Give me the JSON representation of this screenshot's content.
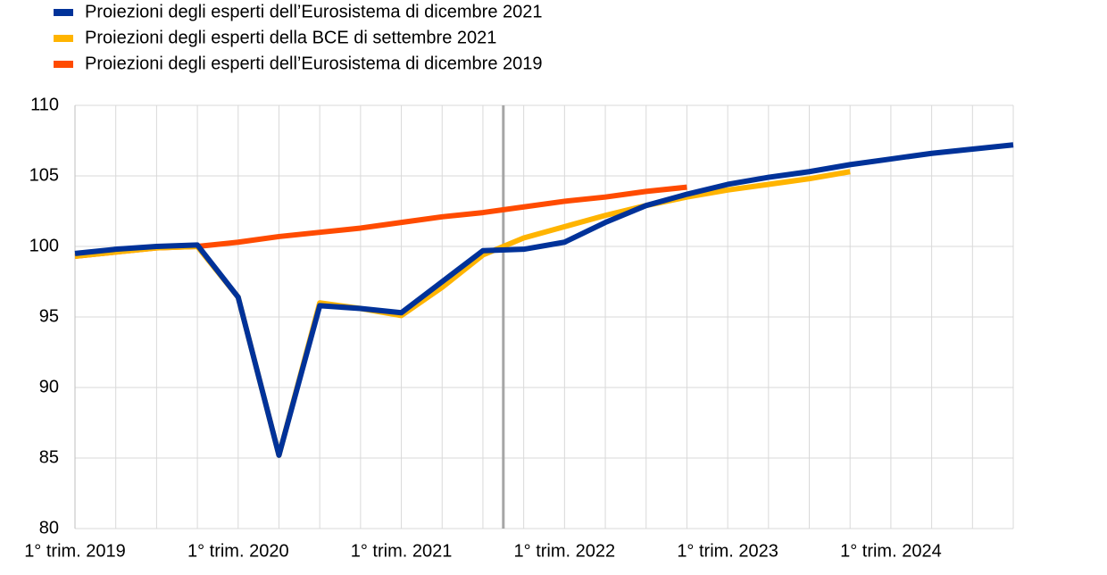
{
  "chart_data": {
    "type": "line",
    "categories": [
      "1° trim. 2019",
      null,
      null,
      null,
      "1° trim. 2020",
      null,
      null,
      null,
      "1° trim. 2021",
      null,
      null,
      null,
      "1° trim. 2022",
      null,
      null,
      null,
      "1° trim. 2023",
      null,
      null,
      null,
      "1° trim. 2024",
      null,
      null,
      null
    ],
    "series": [
      {
        "name": "Proiezioni degli esperti dell’Eurosistema di dicembre 2019",
        "color": "#ff4b00",
        "values": [
          99.3,
          99.6,
          99.9,
          100.0,
          100.3,
          100.7,
          101.0,
          101.3,
          101.7,
          102.1,
          102.4,
          102.8,
          103.2,
          103.5,
          103.9,
          104.2,
          null,
          null,
          null,
          null,
          null,
          null,
          null,
          null
        ]
      },
      {
        "name": "Proiezioni degli esperti della BCE di settembre 2021",
        "color": "#ffb400",
        "values": [
          99.3,
          99.6,
          99.9,
          100.0,
          96.4,
          85.2,
          96.0,
          95.6,
          95.1,
          97.1,
          99.4,
          100.6,
          101.4,
          102.2,
          102.9,
          103.5,
          104.0,
          104.4,
          104.8,
          105.3,
          null,
          null,
          null,
          null
        ]
      },
      {
        "name": "Proiezioni degli esperti dell’Eurosistema di dicembre 2021",
        "color": "#003299",
        "values": [
          99.5,
          99.8,
          100.0,
          100.1,
          96.4,
          85.2,
          95.8,
          95.6,
          95.3,
          97.5,
          99.7,
          99.8,
          100.3,
          101.7,
          102.9,
          103.7,
          104.4,
          104.9,
          105.3,
          105.8,
          106.2,
          106.6,
          106.9,
          107.2
        ]
      }
    ],
    "legend_order": [
      2,
      1,
      0
    ],
    "ylim": [
      80,
      110
    ],
    "yticks": [
      80,
      85,
      90,
      95,
      100,
      105,
      110
    ],
    "grid": true,
    "vline_at": 10.5,
    "vline_color": "#a6a6a6"
  }
}
